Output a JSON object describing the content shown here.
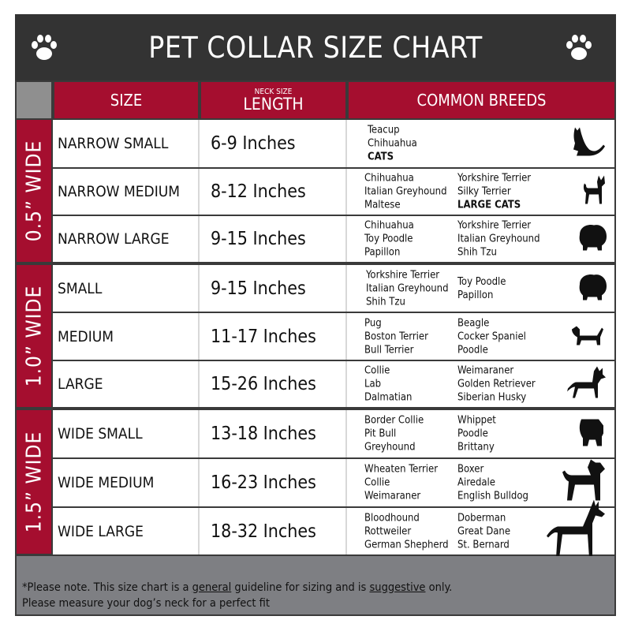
{
  "title": "PET COLLAR SIZE CHART",
  "headers": {
    "size": "SIZE",
    "length_small": "NECK SIZE",
    "length": "LENGTH",
    "breeds": "COMMON BREEDS"
  },
  "groups": [
    {
      "label": "0.5” WIDE"
    },
    {
      "label": "1.0” WIDE"
    },
    {
      "label": "1.5” WIDE"
    }
  ],
  "rows": [
    {
      "size": "NARROW SMALL",
      "length": "6-9   Inches",
      "col1": [
        "Teacup",
        "Chihuahua",
        "CATS"
      ],
      "col2": [],
      "icon": "cat-icon"
    },
    {
      "size": "NARROW MEDIUM",
      "length": "8-12 Inches",
      "col1": [
        "Chihuahua",
        "Italian Greyhound",
        "Maltese"
      ],
      "col2": [
        "Yorkshire Terrier",
        "Silky Terrier",
        "LARGE CATS"
      ],
      "icon": "chihuahua-icon"
    },
    {
      "size": "NARROW LARGE",
      "length": "9-15 Inches",
      "col1": [
        "Chihuahua",
        "Toy Poodle",
        "Papillon"
      ],
      "col2": [
        "Yorkshire Terrier",
        "Italian Greyhound",
        "Shih Tzu"
      ],
      "icon": "fluffy-dog-icon"
    },
    {
      "size": "SMALL",
      "length": "9-15   Inches",
      "col1": [
        "Yorkshire Terrier",
        "Italian Greyhound",
        "Shih Tzu"
      ],
      "col2": [
        "Toy Poodle",
        "Papillon"
      ],
      "icon": "fluffy-dog-icon"
    },
    {
      "size": "MEDIUM",
      "length": "11-17 Inches",
      "col1": [
        "Pug",
        "Boston Terrier",
        "Bull Terrier"
      ],
      "col2": [
        "Beagle",
        "Cocker Spaniel",
        "Poodle"
      ],
      "icon": "dachshund-icon"
    },
    {
      "size": "LARGE",
      "length": "15-26 Inches",
      "col1": [
        "Collie",
        "Lab",
        "Dalmatian"
      ],
      "col2": [
        "Weimaraner",
        "Golden Retriever",
        "Siberian Husky"
      ],
      "icon": "shepherd-icon"
    },
    {
      "size": "WIDE SMALL",
      "length": "13-18 Inches",
      "col1": [
        "Border Collie",
        "Pit Bull",
        "Greyhound"
      ],
      "col2": [
        "Whippet",
        "Poodle",
        "Brittany"
      ],
      "icon": "bulldog-icon"
    },
    {
      "size": "WIDE MEDIUM",
      "length": "16-23 Inches",
      "col1": [
        "Wheaten Terrier",
        "Collie",
        "Weimaraner"
      ],
      "col2": [
        "Boxer",
        "Airedale",
        "English Bulldog"
      ],
      "icon": "pitbull-icon"
    },
    {
      "size": "WIDE LARGE",
      "length": "18-32 Inches",
      "col1": [
        "Bloodhound",
        "Rottweiler",
        "German Shepherd"
      ],
      "col2": [
        "Doberman",
        "Great Dane",
        "St. Bernard"
      ],
      "icon": "doberman-icon"
    }
  ],
  "footer": {
    "p1": "*Please note. This size chart is a ",
    "general": "general",
    "p2": " guideline for sizing and is ",
    "suggestive": "suggestive",
    "p3": " only.",
    "line2": "Please measure your dog’s neck for a perfect fit"
  },
  "colors": {
    "accent": "#a50e2f",
    "title_bg": "#333333",
    "footer_bg": "#7e7f83"
  }
}
